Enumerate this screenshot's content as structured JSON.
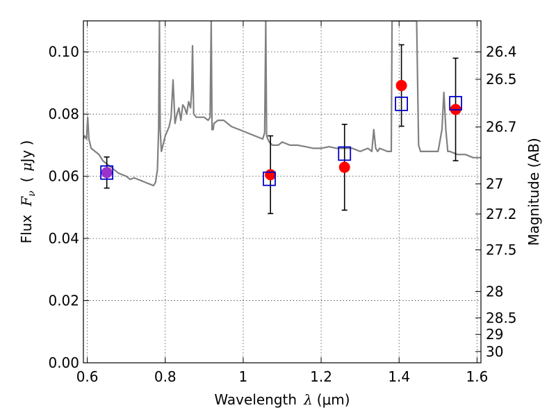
{
  "chart_data": {
    "type": "scatter",
    "xlabel": {
      "prefix": "Wavelength",
      "symbol": "λ",
      "unit": "(μm)"
    },
    "ylabel": {
      "prefix": "Flux",
      "symbol": "F",
      "subscript": "ν",
      "unit_open": "(",
      "unit_mu": "μ",
      "unit_rest": "Jy )"
    },
    "y2label": "Magnitude (AB)",
    "xlim": [
      0.59,
      1.61
    ],
    "ylim": [
      0.0,
      0.11
    ],
    "xticks": [
      "0.6",
      "0.8",
      "1",
      "1.2",
      "1.4",
      "1.6"
    ],
    "xtick_values": [
      0.6,
      0.8,
      1.0,
      1.2,
      1.4,
      1.6
    ],
    "yticks": [
      "0.00",
      "0.02",
      "0.04",
      "0.06",
      "0.08",
      "0.10"
    ],
    "ytick_values": [
      0.0,
      0.02,
      0.04,
      0.06,
      0.08,
      0.1
    ],
    "y2ticks": [
      "26.4",
      "26.5",
      "26.7",
      "27",
      "27.2",
      "27.5",
      "28",
      "28.5",
      "29",
      "30"
    ],
    "y2tick_values": [
      26.4,
      26.5,
      26.7,
      27,
      27.2,
      27.5,
      28,
      28.5,
      29,
      30
    ],
    "grid": true,
    "colors": {
      "model": "#808080",
      "observed": "#ff0000",
      "model_points": "#0000cc",
      "errorbar": "#000000",
      "overlap": "#9933cc"
    },
    "model_spectrum": {
      "x": [
        0.59,
        0.593,
        0.598,
        0.601,
        0.604,
        0.61,
        0.62,
        0.63,
        0.64,
        0.65,
        0.66,
        0.67,
        0.68,
        0.69,
        0.7,
        0.71,
        0.72,
        0.73,
        0.74,
        0.75,
        0.76,
        0.77,
        0.775,
        0.78,
        0.783,
        0.785,
        0.787,
        0.79,
        0.8,
        0.81,
        0.815,
        0.82,
        0.825,
        0.83,
        0.835,
        0.84,
        0.845,
        0.85,
        0.855,
        0.86,
        0.865,
        0.868,
        0.87,
        0.873,
        0.88,
        0.89,
        0.9,
        0.91,
        0.915,
        0.918,
        0.92,
        0.923,
        0.925,
        0.935,
        0.95,
        0.97,
        0.99,
        1.01,
        1.03,
        1.05,
        1.055,
        1.058,
        1.06,
        1.063,
        1.067,
        1.075,
        1.09,
        1.1,
        1.12,
        1.14,
        1.16,
        1.18,
        1.2,
        1.22,
        1.24,
        1.26,
        1.28,
        1.3,
        1.32,
        1.33,
        1.335,
        1.34,
        1.345,
        1.35,
        1.37,
        1.38,
        1.382,
        1.385,
        1.39,
        1.4,
        1.42,
        1.43,
        1.44,
        1.445,
        1.45,
        1.455,
        1.46,
        1.48,
        1.5,
        1.51,
        1.515,
        1.52,
        1.525,
        1.53,
        1.55,
        1.57,
        1.59,
        1.61
      ],
      "y": [
        0.072,
        0.073,
        0.072,
        0.079,
        0.072,
        0.069,
        0.068,
        0.067,
        0.065,
        0.064,
        0.063,
        0.062,
        0.061,
        0.0605,
        0.06,
        0.059,
        0.0595,
        0.059,
        0.0585,
        0.058,
        0.0575,
        0.057,
        0.058,
        0.062,
        0.075,
        0.11,
        0.075,
        0.068,
        0.073,
        0.076,
        0.079,
        0.091,
        0.077,
        0.08,
        0.082,
        0.078,
        0.083,
        0.082,
        0.08,
        0.084,
        0.082,
        0.088,
        0.102,
        0.08,
        0.079,
        0.079,
        0.079,
        0.078,
        0.079,
        0.11,
        0.075,
        0.075,
        0.077,
        0.078,
        0.078,
        0.076,
        0.075,
        0.074,
        0.073,
        0.072,
        0.074,
        0.11,
        0.073,
        0.072,
        0.071,
        0.07,
        0.07,
        0.071,
        0.07,
        0.07,
        0.0695,
        0.069,
        0.069,
        0.0695,
        0.069,
        0.069,
        0.069,
        0.068,
        0.069,
        0.068,
        0.075,
        0.069,
        0.068,
        0.069,
        0.068,
        0.068,
        0.11,
        0.11,
        0.11,
        0.11,
        0.11,
        0.11,
        0.11,
        0.11,
        0.07,
        0.068,
        0.068,
        0.068,
        0.068,
        0.075,
        0.087,
        0.075,
        0.068,
        0.068,
        0.067,
        0.067,
        0.066,
        0.066
      ]
    },
    "observed": [
      {
        "x": 0.65,
        "y": 0.0612,
        "yerr": 0.005
      },
      {
        "x": 1.07,
        "y": 0.0605,
        "yerr": 0.0125
      },
      {
        "x": 1.26,
        "y": 0.0629,
        "yerr": 0.0138
      },
      {
        "x": 1.406,
        "y": 0.0892,
        "yerr": 0.0131
      },
      {
        "x": 1.545,
        "y": 0.0815,
        "yerr": 0.0165
      }
    ],
    "model_points": [
      {
        "x": 0.65,
        "y": 0.0612
      },
      {
        "x": 1.067,
        "y": 0.0592
      },
      {
        "x": 1.26,
        "y": 0.0673
      },
      {
        "x": 1.406,
        "y": 0.0833
      },
      {
        "x": 1.545,
        "y": 0.0835
      }
    ]
  }
}
